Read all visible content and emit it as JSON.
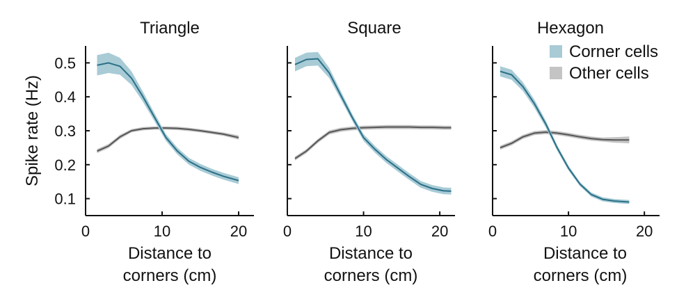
{
  "colors": {
    "corner": "#2a6f86",
    "corner_band": "#a8cbd6",
    "other": "#555555",
    "other_band": "#c4c4c4",
    "axis": "#111111"
  },
  "chart_data": [
    {
      "type": "line",
      "title": "Triangle",
      "xlabel_line1": "Distance to",
      "xlabel_line2": "corners (cm)",
      "ylabel": "Spike rate (Hz)",
      "xlim": [
        0,
        22
      ],
      "ylim": [
        0.05,
        0.55
      ],
      "xticks": [
        0,
        10,
        20
      ],
      "yticks": [
        0.1,
        0.2,
        0.3,
        0.4,
        0.5
      ],
      "show_yticklabels": true,
      "series": [
        {
          "key": "corner",
          "x": [
            1.5,
            3,
            4.5,
            6,
            7.5,
            9,
            10.5,
            12,
            13.5,
            15,
            16.5,
            18,
            20
          ],
          "y": [
            0.493,
            0.5,
            0.49,
            0.455,
            0.4,
            0.34,
            0.28,
            0.24,
            0.21,
            0.192,
            0.178,
            0.166,
            0.153
          ],
          "err": [
            0.03,
            0.03,
            0.025,
            0.02,
            0.015,
            0.012,
            0.01,
            0.01,
            0.01,
            0.01,
            0.01,
            0.01,
            0.01
          ]
        },
        {
          "key": "other",
          "x": [
            1.5,
            3,
            4.5,
            6,
            7.5,
            9,
            10.5,
            12,
            13.5,
            15,
            16.5,
            18,
            20
          ],
          "y": [
            0.24,
            0.255,
            0.282,
            0.3,
            0.306,
            0.308,
            0.308,
            0.307,
            0.304,
            0.3,
            0.295,
            0.29,
            0.28
          ],
          "err": [
            0.006,
            0.006,
            0.006,
            0.005,
            0.005,
            0.005,
            0.005,
            0.005,
            0.005,
            0.005,
            0.005,
            0.005,
            0.006
          ]
        }
      ]
    },
    {
      "type": "line",
      "title": "Square",
      "xlabel_line1": "Distance to",
      "xlabel_line2": "corners (cm)",
      "ylabel": "",
      "xlim": [
        0,
        22
      ],
      "ylim": [
        0.05,
        0.55
      ],
      "xticks": [
        0,
        10,
        20
      ],
      "yticks": [
        0.1,
        0.2,
        0.3,
        0.4,
        0.5
      ],
      "show_yticklabels": false,
      "series": [
        {
          "key": "corner",
          "x": [
            1,
            2.5,
            4,
            5.5,
            7,
            8.5,
            10,
            11.5,
            13,
            14.5,
            16,
            17.5,
            19,
            20.5,
            21.5
          ],
          "y": [
            0.495,
            0.51,
            0.512,
            0.47,
            0.405,
            0.34,
            0.28,
            0.245,
            0.215,
            0.19,
            0.165,
            0.142,
            0.13,
            0.123,
            0.122
          ],
          "err": [
            0.02,
            0.02,
            0.02,
            0.015,
            0.012,
            0.01,
            0.01,
            0.01,
            0.01,
            0.01,
            0.01,
            0.01,
            0.01,
            0.01,
            0.01
          ]
        },
        {
          "key": "other",
          "x": [
            1,
            2.5,
            4,
            5.5,
            7,
            8.5,
            10,
            11.5,
            13,
            14.5,
            16,
            17.5,
            19,
            20.5,
            21.5
          ],
          "y": [
            0.218,
            0.24,
            0.27,
            0.295,
            0.303,
            0.307,
            0.309,
            0.31,
            0.311,
            0.311,
            0.311,
            0.31,
            0.31,
            0.309,
            0.309
          ],
          "err": [
            0.006,
            0.006,
            0.006,
            0.006,
            0.006,
            0.006,
            0.006,
            0.006,
            0.006,
            0.006,
            0.006,
            0.006,
            0.006,
            0.006,
            0.006
          ]
        }
      ]
    },
    {
      "type": "line",
      "title": "Hexagon",
      "xlabel_line1": "Distance to",
      "xlabel_line2": "corners (cm)",
      "ylabel": "",
      "xlim": [
        0,
        22
      ],
      "ylim": [
        0.05,
        0.55
      ],
      "xticks": [
        0,
        10,
        20
      ],
      "yticks": [
        0.1,
        0.2,
        0.3,
        0.4,
        0.5
      ],
      "show_yticklabels": false,
      "legend": {
        "placement": "top-right",
        "entries": [
          {
            "key": "corner",
            "label": "Corner cells"
          },
          {
            "key": "other",
            "label": "Other cells"
          }
        ]
      },
      "series": [
        {
          "key": "corner",
          "x": [
            1,
            2.5,
            4,
            5.5,
            7,
            8.5,
            10,
            11.5,
            13,
            14.5,
            16,
            18
          ],
          "y": [
            0.475,
            0.465,
            0.43,
            0.38,
            0.32,
            0.25,
            0.19,
            0.143,
            0.112,
            0.098,
            0.093,
            0.09
          ],
          "err": [
            0.015,
            0.015,
            0.013,
            0.012,
            0.01,
            0.008,
            0.007,
            0.006,
            0.006,
            0.006,
            0.006,
            0.006
          ]
        },
        {
          "key": "other",
          "x": [
            1,
            2.5,
            4,
            5.5,
            7,
            8.5,
            10,
            11.5,
            13,
            14.5,
            16,
            18
          ],
          "y": [
            0.25,
            0.263,
            0.282,
            0.293,
            0.296,
            0.293,
            0.288,
            0.282,
            0.277,
            0.274,
            0.273,
            0.273
          ],
          "err": [
            0.006,
            0.006,
            0.006,
            0.006,
            0.006,
            0.006,
            0.006,
            0.006,
            0.006,
            0.006,
            0.008,
            0.01
          ]
        }
      ]
    }
  ]
}
